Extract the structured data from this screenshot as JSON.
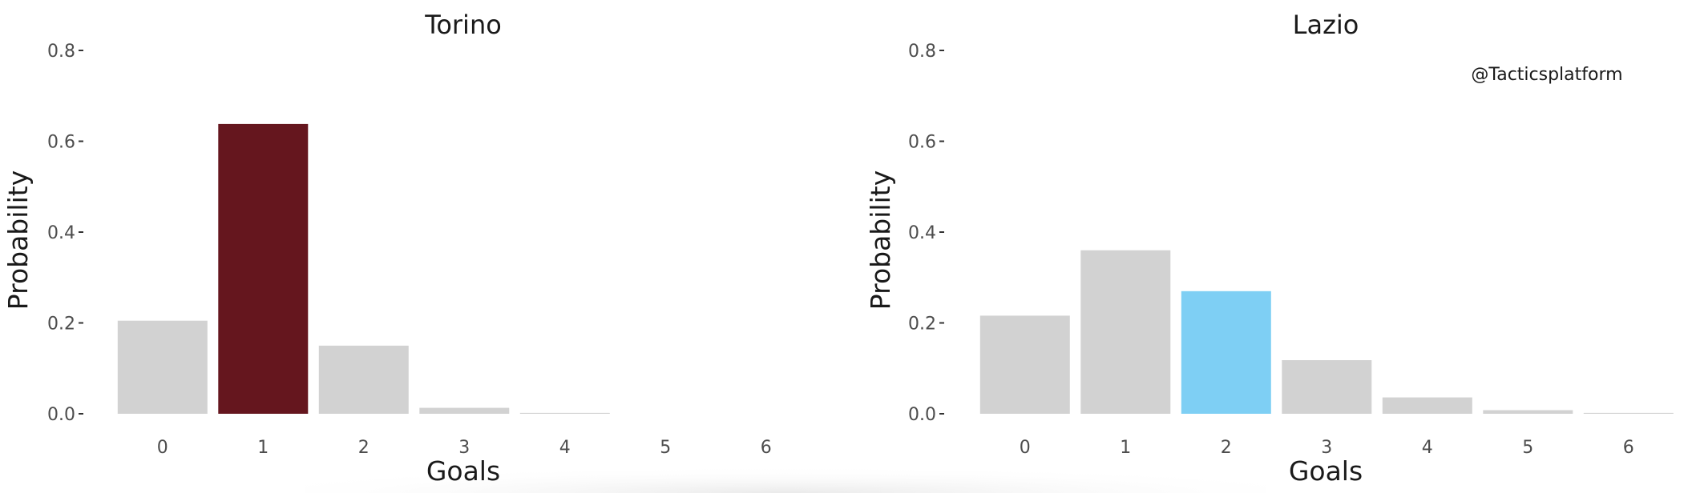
{
  "watermark": "@Tacticsplatform",
  "chart_data": [
    {
      "type": "bar",
      "title": "Torino",
      "xlabel": "Goals",
      "ylabel": "Probability",
      "categories": [
        "0",
        "1",
        "2",
        "3",
        "4",
        "5",
        "6"
      ],
      "values": [
        0.205,
        0.638,
        0.15,
        0.013,
        0.002,
        0.0,
        0.0
      ],
      "highlight_index": 1,
      "highlight_color": "#65161e",
      "bar_color": "#d2d2d2",
      "ylim": [
        0,
        0.8
      ],
      "yticks": [
        "0.0",
        "0.2",
        "0.4",
        "0.6",
        "0.8"
      ],
      "grid": false
    },
    {
      "type": "bar",
      "title": "Lazio",
      "xlabel": "Goals",
      "ylabel": "Probability",
      "categories": [
        "0",
        "1",
        "2",
        "3",
        "4",
        "5",
        "6"
      ],
      "values": [
        0.216,
        0.36,
        0.27,
        0.118,
        0.036,
        0.008,
        0.002
      ],
      "highlight_index": 2,
      "highlight_color": "#7ecff4",
      "bar_color": "#d2d2d2",
      "ylim": [
        0,
        0.8
      ],
      "yticks": [
        "0.0",
        "0.2",
        "0.4",
        "0.6",
        "0.8"
      ],
      "grid": false
    }
  ]
}
